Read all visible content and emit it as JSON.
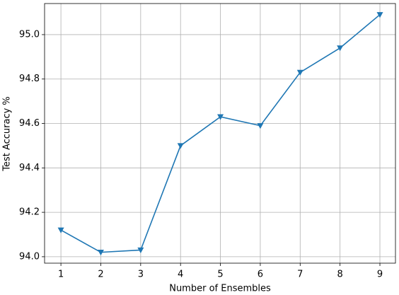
{
  "chart_data": {
    "type": "line",
    "xlabel": "Number of Ensembles",
    "ylabel": "Test Accuracy %",
    "x": [
      1,
      2,
      3,
      4,
      5,
      6,
      7,
      8,
      9
    ],
    "series": [
      {
        "color": "#1f77b4",
        "marker": "triangle-down",
        "values": [
          94.12,
          94.02,
          94.03,
          94.5,
          94.63,
          94.59,
          94.83,
          94.94,
          95.09
        ]
      }
    ],
    "xlim": [
      0.59,
      9.39
    ],
    "ylim": [
      93.971,
      95.14
    ],
    "xticks": [
      1,
      2,
      3,
      4,
      5,
      6,
      7,
      8,
      9
    ],
    "yticks": [
      {
        "value": 94.0,
        "label": "94.0"
      },
      {
        "value": 94.2,
        "label": "94.2"
      },
      {
        "value": 94.4,
        "label": "94.4"
      },
      {
        "value": 94.6,
        "label": "94.6"
      },
      {
        "value": 94.8,
        "label": "94.8"
      },
      {
        "value": 95.0,
        "label": "95.0"
      }
    ],
    "grid": true
  }
}
